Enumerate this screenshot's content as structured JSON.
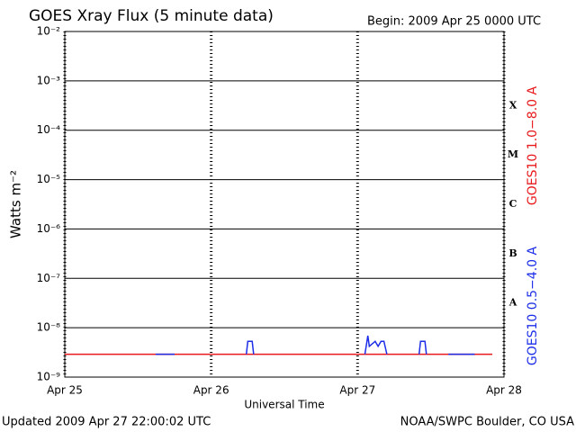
{
  "chart_data": {
    "type": "line",
    "title": "GOES Xray Flux (5 minute data)",
    "subtitle": "Begin:  2009 Apr 25 0000 UTC",
    "y_label": "Watts m⁻²",
    "x_label": "Universal Time",
    "footer_left": "Updated 2009 Apr 27 22:00:02 UTC",
    "footer_right": "NOAA/SWPC Boulder, CO USA",
    "log_y": true,
    "grid": true,
    "ylim": [
      1e-09,
      0.01
    ],
    "yticks": [
      {
        "value": 1e-09,
        "label": "10⁻⁹"
      },
      {
        "value": 1e-08,
        "label": "10⁻⁸"
      },
      {
        "value": 1e-07,
        "label": "10⁻⁷"
      },
      {
        "value": 1e-06,
        "label": "10⁻⁶"
      },
      {
        "value": 1e-05,
        "label": "10⁻⁵"
      },
      {
        "value": 0.0001,
        "label": "10⁻⁴"
      },
      {
        "value": 0.001,
        "label": "10⁻³"
      },
      {
        "value": 0.01,
        "label": "10⁻²"
      }
    ],
    "xlim": [
      25,
      28
    ],
    "xticks": [
      {
        "value": 25,
        "label": "Apr 25"
      },
      {
        "value": 26,
        "label": "Apr 26"
      },
      {
        "value": 27,
        "label": "Apr 27"
      },
      {
        "value": 28,
        "label": "Apr 28"
      }
    ],
    "flare_classes": [
      {
        "label": "A",
        "value": 1e-08
      },
      {
        "label": "B",
        "value": 1e-07
      },
      {
        "label": "C",
        "value": 1e-06
      },
      {
        "label": "M",
        "value": 1e-05
      },
      {
        "label": "X",
        "value": 0.0001
      }
    ],
    "x": [
      25,
      25.62,
      25.75,
      26.1,
      26.24,
      26.25,
      26.28,
      26.29,
      26.6,
      27.05,
      27.07,
      27.08,
      27.12,
      27.14,
      27.16,
      27.18,
      27.2,
      27.3,
      27.42,
      27.43,
      27.46,
      27.47,
      27.55,
      27.62,
      27.8,
      27.92
    ],
    "series": [
      {
        "name": "GOES10 1.0−8.0 A",
        "color": "#e8191c",
        "values": [
          2.9e-09,
          2.9e-09,
          2.9e-09,
          2.9e-09,
          2.9e-09,
          2.9e-09,
          2.9e-09,
          2.9e-09,
          2.9e-09,
          2.9e-09,
          2.9e-09,
          2.9e-09,
          2.9e-09,
          2.9e-09,
          2.9e-09,
          2.9e-09,
          2.9e-09,
          2.9e-09,
          2.9e-09,
          2.9e-09,
          2.9e-09,
          2.9e-09,
          2.9e-09,
          2.9e-09,
          2.9e-09,
          2.9e-09
        ]
      },
      {
        "name": "GOES10 0.5−4.0 A",
        "color": "#1c2ee8",
        "values": [
          null,
          2.9e-09,
          2.9e-09,
          null,
          2.9e-09,
          5.3e-09,
          5.3e-09,
          2.9e-09,
          null,
          2.9e-09,
          6.9e-09,
          4.2e-09,
          5.3e-09,
          4.2e-09,
          5.3e-09,
          5.3e-09,
          2.9e-09,
          null,
          2.9e-09,
          5.3e-09,
          5.3e-09,
          2.9e-09,
          null,
          2.9e-09,
          2.9e-09,
          null
        ]
      }
    ]
  }
}
